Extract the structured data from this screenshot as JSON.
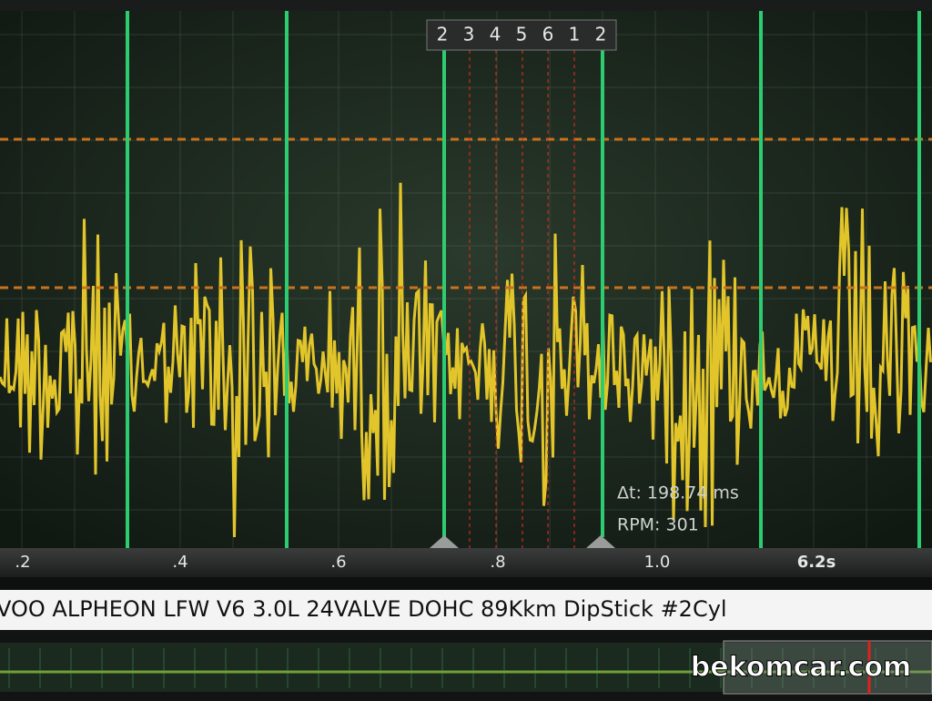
{
  "cylinder_markers": [
    "2",
    "3",
    "4",
    "5",
    "6",
    "1",
    "2"
  ],
  "time_axis": [
    ".2",
    ".4",
    ".6",
    ".8",
    "1.0",
    "6.2s"
  ],
  "measurement": {
    "delta_t": "Δt: 198.74 ms",
    "rpm": "RPM: 301"
  },
  "vehicle_title": "VOO ALPHEON LFW V6 3.0L 24VALVE DOHC 89Kkm DipStick #2Cyl",
  "watermark": "bekomcar.com"
}
